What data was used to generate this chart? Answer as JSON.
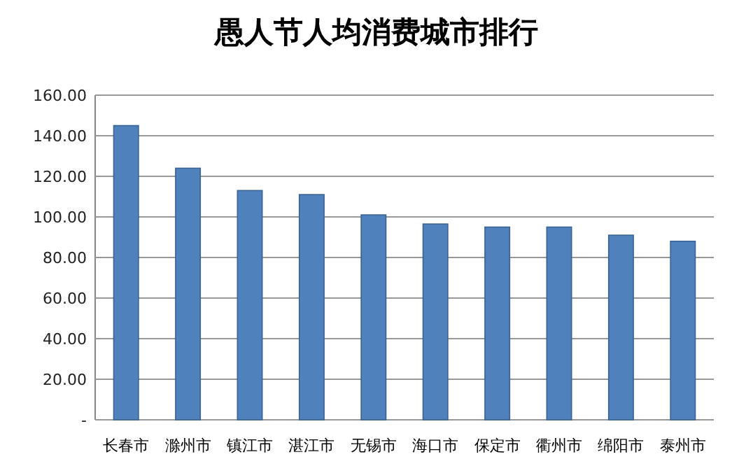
{
  "chart_data": {
    "type": "bar",
    "title": "愚人节人均消费城市排行",
    "categories": [
      "长春市",
      "滁州市",
      "镇江市",
      "湛江市",
      "无锡市",
      "海口市",
      "保定市",
      "衢州市",
      "绵阳市",
      "泰州市"
    ],
    "values": [
      145,
      124,
      113,
      111,
      101,
      96.5,
      95,
      95,
      91,
      88
    ],
    "color": "#4f81bd",
    "grid": "y",
    "ylim": [
      0,
      160
    ],
    "yticks": [
      {
        "value": 0,
        "label": "-"
      },
      {
        "value": 20,
        "label": "20.00"
      },
      {
        "value": 40,
        "label": "40.00"
      },
      {
        "value": 60,
        "label": "60.00"
      },
      {
        "value": 80,
        "label": "80.00"
      },
      {
        "value": 100,
        "label": "100.00"
      },
      {
        "value": 120,
        "label": "120.00"
      },
      {
        "value": 140,
        "label": "140.00"
      },
      {
        "value": 160,
        "label": "160.00"
      }
    ]
  }
}
